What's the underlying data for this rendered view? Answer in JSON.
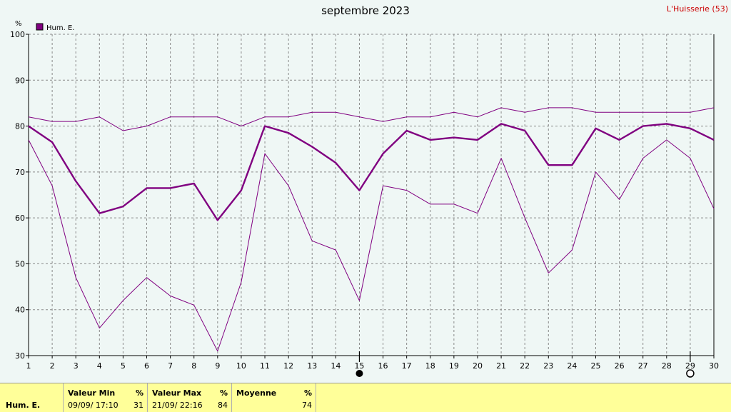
{
  "chart_data": {
    "type": "line",
    "title": "septembre 2023",
    "station": "L'Huisserie (53)",
    "ylabel": "%",
    "ylim": [
      30,
      100
    ],
    "yticks": [
      30,
      40,
      50,
      60,
      70,
      80,
      90,
      100
    ],
    "grid": true,
    "legend_position": "top-left",
    "x": [
      1,
      2,
      3,
      4,
      5,
      6,
      7,
      8,
      9,
      10,
      11,
      12,
      13,
      14,
      15,
      16,
      17,
      18,
      19,
      20,
      21,
      22,
      23,
      24,
      25,
      26,
      27,
      28,
      29,
      30
    ],
    "series": [
      {
        "name": "Hum. E.",
        "role": "max",
        "color": "#800080",
        "values": [
          82,
          81,
          81,
          82,
          79,
          80,
          82,
          82,
          82,
          80,
          82,
          82,
          83,
          83,
          82,
          81,
          82,
          82,
          83,
          82,
          84,
          83,
          84,
          84,
          83,
          83,
          83,
          83,
          83,
          84
        ]
      },
      {
        "name": "Hum. E.",
        "role": "mean",
        "color": "#800080",
        "values": [
          80,
          76.5,
          68,
          61,
          62.5,
          66.5,
          66.5,
          67.5,
          59.5,
          66,
          80,
          78.5,
          75.5,
          72,
          66,
          74,
          79,
          77,
          77.5,
          77,
          80.5,
          79,
          71.5,
          71.5,
          79.5,
          77,
          80,
          80.5,
          79.5,
          77
        ]
      },
      {
        "name": "Hum. E.",
        "role": "min",
        "color": "#800080",
        "values": [
          77,
          67,
          47,
          36,
          42,
          47,
          43,
          41,
          31,
          46,
          74,
          67,
          55,
          53,
          42,
          67,
          66,
          63,
          63,
          61,
          73,
          60,
          48,
          53,
          70,
          64,
          73,
          77,
          73,
          62
        ]
      }
    ],
    "moon_markers": [
      {
        "day": 15,
        "phase": "new-moon"
      },
      {
        "day": 29,
        "phase": "full-moon"
      }
    ]
  },
  "legend": {
    "label": "Hum. E."
  },
  "summary": {
    "row_label": "Hum. E.",
    "min_header": "Valeur Min",
    "min_unit": "%",
    "min_date": "09/09/  17:10",
    "min_value": "31",
    "max_header": "Valeur Max",
    "max_unit": "%",
    "max_date": "21/09/  22:16",
    "max_value": "84",
    "avg_header": "Moyenne",
    "avg_unit": "%",
    "avg_value": "74"
  }
}
